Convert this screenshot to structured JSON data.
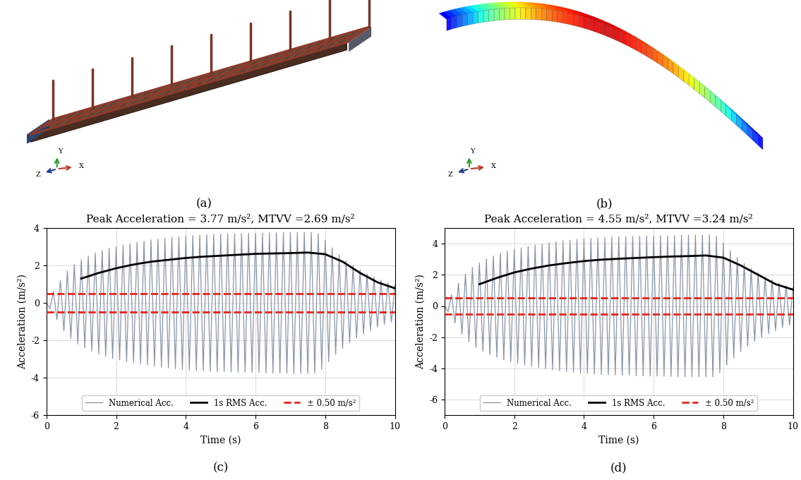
{
  "models": [
    {
      "caption": "(a)",
      "axis_labels": [
        "Z",
        "Y",
        "X"
      ]
    },
    {
      "caption": "(b)",
      "axis_labels": [
        "Z",
        "Y",
        "X"
      ]
    }
  ],
  "chart_data": [
    {
      "type": "line",
      "caption": "(c)",
      "title": "Peak Acceleration = 3.77 m/s², MTVV =2.69 m/s²",
      "x_label": "Time (s)",
      "y_label": "Acceleration (m/s²)",
      "xlim": [
        0,
        10
      ],
      "xticks": [
        0,
        2,
        4,
        6,
        8,
        10
      ],
      "ylim": [
        -6,
        4
      ],
      "yticks": [
        -6,
        -4,
        -2,
        0,
        2,
        4
      ],
      "grid": true,
      "legend": "lower center",
      "series": [
        {
          "name": "Numerical Acc.",
          "type": "line",
          "color": "#8795aa",
          "line_style": "solid",
          "x": [
            0.0,
            0.1,
            0.2,
            0.3,
            0.4,
            0.5,
            0.6,
            0.7,
            0.8,
            0.9,
            1.0,
            1.1,
            1.2,
            1.3,
            1.4,
            1.5,
            1.6,
            1.7,
            1.8,
            1.9,
            2.0,
            2.1,
            2.2,
            2.3,
            2.4,
            2.5,
            2.6,
            2.7,
            2.8,
            2.9,
            3.0,
            3.1,
            3.2,
            3.3,
            3.4,
            3.5,
            3.6,
            3.7,
            3.8,
            3.9,
            4.0,
            4.1,
            4.2,
            4.3,
            4.4,
            4.5,
            4.6,
            4.7,
            4.8,
            4.9,
            5.0,
            5.1,
            5.2,
            5.3,
            5.4,
            5.5,
            5.6,
            5.7,
            5.8,
            5.9,
            6.0,
            6.1,
            6.2,
            6.3,
            6.4,
            6.5,
            6.6,
            6.7,
            6.8,
            6.9,
            7.0,
            7.1,
            7.2,
            7.3,
            7.4,
            7.5,
            7.6,
            7.7,
            7.8,
            7.9,
            8.0,
            8.1,
            8.2,
            8.3,
            8.4,
            8.5,
            8.6,
            8.7,
            8.8,
            8.9,
            9.0,
            9.1,
            9.2,
            9.3,
            9.4,
            9.5,
            9.6,
            9.7,
            9.8,
            9.9,
            10.0
          ],
          "values": [
            0,
            -0.3,
            0.6,
            -0.9,
            1.2,
            -1.5,
            1.7,
            -1.9,
            2.05,
            -2.2,
            2.3,
            -2.4,
            2.5,
            -2.58,
            2.66,
            -2.73,
            2.8,
            -2.86,
            2.92,
            -2.97,
            3.0,
            -3.05,
            3.09,
            -3.13,
            3.17,
            -3.2,
            3.24,
            -3.27,
            3.3,
            -3.33,
            3.36,
            -3.39,
            3.41,
            -3.44,
            3.46,
            -3.48,
            3.5,
            -3.52,
            3.54,
            -3.56,
            3.58,
            -3.59,
            3.6,
            -3.61,
            3.62,
            -3.63,
            3.64,
            -3.65,
            3.66,
            -3.67,
            3.68,
            -3.68,
            3.69,
            -3.69,
            3.7,
            -3.7,
            3.71,
            -3.71,
            3.72,
            -3.72,
            3.72,
            -3.73,
            3.73,
            -3.74,
            3.74,
            -3.75,
            3.75,
            -3.76,
            3.76,
            -3.76,
            3.77,
            -3.77,
            3.77,
            -3.77,
            3.77,
            -3.77,
            3.77,
            -3.76,
            3.7,
            -3.55,
            3.35,
            -3.15,
            2.95,
            -2.75,
            2.58,
            -2.42,
            2.27,
            -2.13,
            2.0,
            -1.88,
            1.77,
            -1.66,
            1.56,
            -1.47,
            1.38,
            -1.3,
            1.22,
            -1.15,
            1.08,
            -1.02,
            0.96
          ]
        },
        {
          "name": "1s RMS Acc.",
          "type": "line",
          "color": "#000000",
          "line_style": "solid",
          "x": [
            1.0,
            1.5,
            2.0,
            2.5,
            3.0,
            3.5,
            4.0,
            4.5,
            5.0,
            5.5,
            6.0,
            6.5,
            7.0,
            7.5,
            8.0,
            8.5,
            9.0,
            9.5,
            10.0
          ],
          "values": [
            1.3,
            1.6,
            1.85,
            2.05,
            2.2,
            2.3,
            2.4,
            2.47,
            2.52,
            2.57,
            2.62,
            2.64,
            2.66,
            2.69,
            2.6,
            2.2,
            1.6,
            1.1,
            0.78
          ]
        },
        {
          "name": "± 0.50 m/s²",
          "type": "hline",
          "color": "#e8221c",
          "line_style": "dashed",
          "values": [
            0.5,
            -0.5
          ]
        }
      ]
    },
    {
      "type": "line",
      "caption": "(d)",
      "title": "Peak Acceleration = 4.55 m/s², MTVV =3.24 m/s²",
      "x_label": "Time (s)",
      "y_label": "Acceleration (m/s²)",
      "xlim": [
        0,
        10
      ],
      "xticks": [
        0,
        2,
        4,
        6,
        8,
        10
      ],
      "ylim": [
        -7,
        5
      ],
      "yticks": [
        -6,
        -4,
        -2,
        0,
        2,
        4
      ],
      "grid": true,
      "legend": "lower center",
      "series": [
        {
          "name": "Numerical Acc.",
          "type": "line",
          "color": "#8795aa",
          "line_style": "solid",
          "x": [
            0.0,
            0.1,
            0.2,
            0.3,
            0.4,
            0.5,
            0.6,
            0.7,
            0.8,
            0.9,
            1.0,
            1.1,
            1.2,
            1.3,
            1.4,
            1.5,
            1.6,
            1.7,
            1.8,
            1.9,
            2.0,
            2.1,
            2.2,
            2.3,
            2.4,
            2.5,
            2.6,
            2.7,
            2.8,
            2.9,
            3.0,
            3.1,
            3.2,
            3.3,
            3.4,
            3.5,
            3.6,
            3.7,
            3.8,
            3.9,
            4.0,
            4.1,
            4.2,
            4.3,
            4.4,
            4.5,
            4.6,
            4.7,
            4.8,
            4.9,
            5.0,
            5.1,
            5.2,
            5.3,
            5.4,
            5.5,
            5.6,
            5.7,
            5.8,
            5.9,
            6.0,
            6.1,
            6.2,
            6.3,
            6.4,
            6.5,
            6.6,
            6.7,
            6.8,
            6.9,
            7.0,
            7.1,
            7.2,
            7.3,
            7.4,
            7.5,
            7.6,
            7.7,
            7.8,
            7.9,
            8.0,
            8.1,
            8.2,
            8.3,
            8.4,
            8.5,
            8.6,
            8.7,
            8.8,
            8.9,
            9.0,
            9.1,
            9.2,
            9.3,
            9.4,
            9.5,
            9.6,
            9.7,
            9.8,
            9.9,
            10.0
          ],
          "values": [
            0,
            -0.36,
            0.72,
            -1.09,
            1.45,
            -1.81,
            2.05,
            -2.29,
            2.47,
            -2.66,
            2.78,
            -2.9,
            3.02,
            -3.11,
            3.21,
            -3.29,
            3.38,
            -3.45,
            3.52,
            -3.58,
            3.62,
            -3.68,
            3.73,
            -3.78,
            3.83,
            -3.86,
            3.91,
            -3.95,
            3.98,
            -4.02,
            4.06,
            -4.09,
            4.12,
            -4.15,
            4.18,
            -4.2,
            4.22,
            -4.25,
            4.27,
            -4.3,
            4.32,
            -4.33,
            4.34,
            -4.36,
            4.37,
            -4.38,
            4.39,
            -4.41,
            4.42,
            -4.43,
            4.44,
            -4.44,
            4.45,
            -4.45,
            4.47,
            -4.47,
            4.48,
            -4.48,
            4.49,
            -4.49,
            4.49,
            -4.5,
            4.5,
            -4.51,
            4.51,
            -4.52,
            4.52,
            -4.54,
            4.54,
            -4.54,
            4.55,
            -4.55,
            4.55,
            -4.55,
            4.55,
            -4.55,
            4.55,
            -4.54,
            4.47,
            -4.28,
            4.04,
            -3.8,
            3.56,
            -3.32,
            3.11,
            -2.92,
            2.74,
            -2.57,
            2.41,
            -2.27,
            2.14,
            -2.0,
            1.88,
            -1.77,
            1.67,
            -1.57,
            1.47,
            -1.39,
            1.3,
            -1.23,
            1.16
          ]
        },
        {
          "name": "1s RMS Acc.",
          "type": "line",
          "color": "#000000",
          "line_style": "solid",
          "x": [
            1.0,
            1.5,
            2.0,
            2.5,
            3.0,
            3.5,
            4.0,
            4.5,
            5.0,
            5.5,
            6.0,
            6.5,
            7.0,
            7.5,
            8.0,
            8.5,
            9.0,
            9.5,
            10.0
          ],
          "values": [
            1.4,
            1.8,
            2.15,
            2.4,
            2.6,
            2.75,
            2.88,
            2.97,
            3.03,
            3.08,
            3.13,
            3.17,
            3.2,
            3.24,
            3.1,
            2.6,
            2.0,
            1.4,
            1.05
          ]
        },
        {
          "name": "± 0.50 m/s²",
          "type": "hline",
          "color": "#e8221c",
          "line_style": "dashed",
          "values": [
            0.5,
            -0.5
          ]
        }
      ]
    }
  ]
}
